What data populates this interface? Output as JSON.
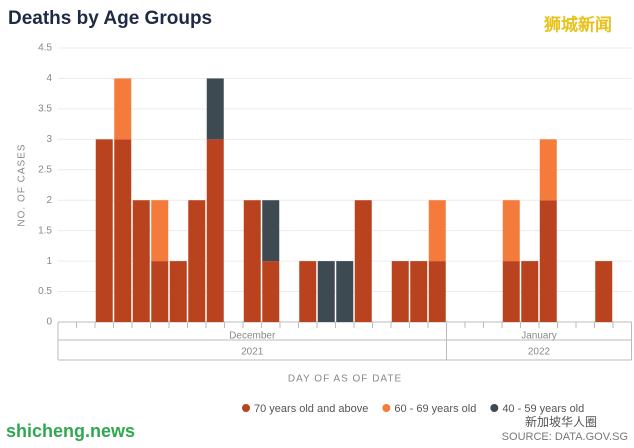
{
  "chart_data": {
    "type": "stacked_bar",
    "title": "Deaths by Age Groups",
    "y_label": "NO. OF CASES",
    "x_label": "DAY OF AS OF DATE",
    "categories": [
      null,
      null,
      null,
      null,
      null,
      null,
      null,
      null,
      null,
      null,
      null,
      null,
      null,
      null,
      null,
      null,
      null,
      null,
      null,
      null,
      null,
      null,
      null,
      null,
      null,
      null,
      null,
      null,
      null,
      null,
      null
    ],
    "x_groups": [
      {
        "label": "December",
        "count": 21
      },
      {
        "label": "January",
        "count": 10
      }
    ],
    "x_year_groups": [
      {
        "label": "2021",
        "count": 21
      },
      {
        "label": "2022",
        "count": 10
      }
    ],
    "series": [
      {
        "name": "70 years old and above",
        "color": "#b9431f",
        "values": [
          0,
          0,
          3,
          3,
          2,
          1,
          1,
          2,
          3,
          0,
          2,
          1,
          0,
          1,
          0,
          0,
          2,
          0,
          1,
          1,
          1,
          0,
          0,
          0,
          1,
          1,
          2,
          0,
          0,
          1,
          0
        ]
      },
      {
        "name": "60 - 69 years old",
        "color": "#f47b3b",
        "values": [
          0,
          0,
          0,
          1,
          0,
          1,
          0,
          0,
          0,
          0,
          0,
          0,
          0,
          0,
          0,
          0,
          0,
          0,
          0,
          0,
          1,
          0,
          0,
          0,
          1,
          0,
          1,
          0,
          0,
          0,
          0
        ]
      },
      {
        "name": "40 - 59 years old",
        "color": "#3e4a52",
        "values": [
          0,
          0,
          0,
          0,
          0,
          0,
          0,
          0,
          1,
          0,
          0,
          1,
          0,
          0,
          1,
          1,
          0,
          0,
          0,
          0,
          0,
          0,
          0,
          0,
          0,
          0,
          0,
          0,
          0,
          0,
          0
        ]
      }
    ],
    "ylim": [
      0,
      4.5
    ],
    "yticks": [
      0,
      0.5,
      1,
      1.5,
      2,
      2.5,
      3,
      3.5,
      4,
      4.5
    ],
    "grid": true,
    "legend": "bottom",
    "source": "SOURCE: DATA.GOV.SG",
    "watermarks": [
      "狮城新闻",
      "shicheng.news",
      "新加坡华人圈"
    ]
  }
}
